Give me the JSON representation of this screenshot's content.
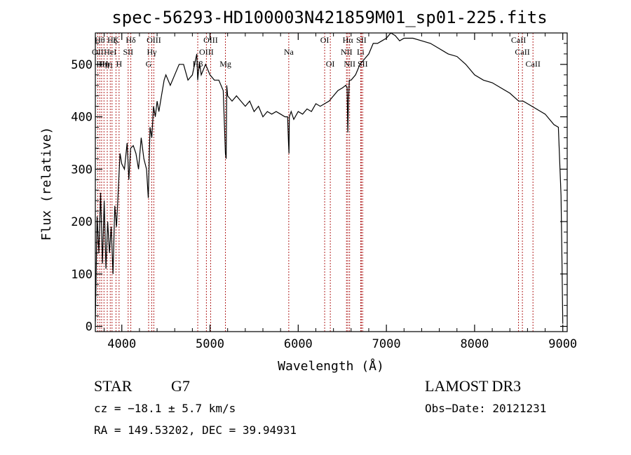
{
  "chart_data": {
    "type": "line",
    "title": "spec-56293-HD100003N421859M01_sp01-225.fits",
    "xlabel": "Wavelength (Å)",
    "ylabel": "Flux (relative)",
    "xlim": [
      3700,
      9050
    ],
    "ylim": [
      -10,
      560
    ],
    "xticks": [
      4000,
      5000,
      6000,
      7000,
      8000,
      9000
    ],
    "yticks": [
      0,
      100,
      200,
      300,
      400,
      500
    ],
    "grid": false,
    "series": [
      {
        "color": "#000000",
        "x": [
          3700,
          3720,
          3740,
          3760,
          3780,
          3800,
          3820,
          3840,
          3860,
          3880,
          3900,
          3920,
          3940,
          3960,
          3980,
          4000,
          4030,
          4060,
          4080,
          4100,
          4130,
          4160,
          4190,
          4220,
          4250,
          4280,
          4300,
          4320,
          4340,
          4360,
          4380,
          4400,
          4420,
          4450,
          4480,
          4500,
          4550,
          4600,
          4650,
          4700,
          4750,
          4800,
          4850,
          4861,
          4880,
          4900,
          4950,
          5000,
          5050,
          5100,
          5150,
          5175,
          5183,
          5190,
          5200,
          5250,
          5300,
          5350,
          5400,
          5450,
          5500,
          5550,
          5600,
          5650,
          5700,
          5750,
          5800,
          5850,
          5880,
          5890,
          5896,
          5900,
          5920,
          5950,
          6000,
          6050,
          6100,
          6150,
          6200,
          6250,
          6300,
          6350,
          6400,
          6450,
          6500,
          6540,
          6555,
          6563,
          6570,
          6580,
          6600,
          6650,
          6700,
          6750,
          6800,
          6850,
          6900,
          6950,
          7000,
          7050,
          7100,
          7150,
          7200,
          7300,
          7400,
          7500,
          7600,
          7700,
          7800,
          7900,
          8000,
          8100,
          8200,
          8300,
          8400,
          8500,
          8550,
          8600,
          8650,
          8700,
          8750,
          8800,
          8850,
          8900,
          8950,
          8980,
          8990,
          9000
        ],
        "values": [
          10,
          210,
          140,
          255,
          120,
          240,
          110,
          200,
          140,
          190,
          100,
          230,
          190,
          260,
          330,
          310,
          300,
          350,
          280,
          340,
          345,
          330,
          300,
          360,
          320,
          300,
          245,
          380,
          360,
          420,
          400,
          430,
          410,
          440,
          470,
          480,
          460,
          480,
          500,
          500,
          470,
          480,
          520,
          470,
          505,
          480,
          500,
          480,
          470,
          470,
          450,
          330,
          320,
          460,
          440,
          430,
          440,
          430,
          420,
          430,
          410,
          420,
          400,
          410,
          405,
          410,
          405,
          400,
          400,
          350,
          330,
          400,
          410,
          395,
          410,
          405,
          415,
          410,
          425,
          420,
          425,
          430,
          440,
          450,
          455,
          460,
          455,
          370,
          430,
          470,
          470,
          480,
          500,
          510,
          520,
          540,
          540,
          545,
          550,
          560,
          555,
          545,
          550,
          550,
          545,
          540,
          530,
          520,
          515,
          500,
          480,
          470,
          465,
          455,
          445,
          430,
          430,
          425,
          420,
          415,
          410,
          405,
          395,
          385,
          380,
          250,
          130,
          5
        ],
        "name": ""
      }
    ],
    "lines": [
      {
        "x": 3727,
        "label": "OII",
        "row": 1
      },
      {
        "x": 3750,
        "label": "Hθ",
        "row": 0
      },
      {
        "x": 3771,
        "label": "Hη",
        "row": 2
      },
      {
        "x": 3798,
        "label": "Hη",
        "row": 2
      },
      {
        "x": 3835,
        "label": "Hη",
        "row": 2
      },
      {
        "x": 3869,
        "label": "HeI",
        "row": 1
      },
      {
        "x": 3889,
        "label": "Hζ",
        "row": 0
      },
      {
        "x": 3934,
        "label": "K",
        "row": 0
      },
      {
        "x": 3969,
        "label": "H",
        "row": 2
      },
      {
        "x": 4072,
        "label": "SII",
        "row": 1
      },
      {
        "x": 4102,
        "label": "Hδ",
        "row": 0
      },
      {
        "x": 4304,
        "label": "G",
        "row": 2
      },
      {
        "x": 4340,
        "label": "Hγ",
        "row": 1
      },
      {
        "x": 4363,
        "label": "OIII",
        "row": 0
      },
      {
        "x": 4861,
        "label": "Hβ",
        "row": 2
      },
      {
        "x": 4959,
        "label": "OIII",
        "row": 1
      },
      {
        "x": 5007,
        "label": "OIII",
        "row": 0
      },
      {
        "x": 5175,
        "label": "Mg",
        "row": 2
      },
      {
        "x": 5893,
        "label": "Na",
        "row": 1
      },
      {
        "x": 6300,
        "label": "OI",
        "row": 0
      },
      {
        "x": 6364,
        "label": "OI",
        "row": 2
      },
      {
        "x": 6548,
        "label": "NII",
        "row": 1
      },
      {
        "x": 6563,
        "label": "Hα",
        "row": 0
      },
      {
        "x": 6583,
        "label": "NII",
        "row": 2
      },
      {
        "x": 6708,
        "label": "Li",
        "row": 1
      },
      {
        "x": 6716,
        "label": "SII",
        "row": 0
      },
      {
        "x": 6731,
        "label": "SII",
        "row": 2
      },
      {
        "x": 8498,
        "label": "CaII",
        "row": 0
      },
      {
        "x": 8542,
        "label": "CaII",
        "row": 1
      },
      {
        "x": 8662,
        "label": "CaII",
        "row": 2
      }
    ]
  },
  "info": {
    "object_class": "STAR",
    "subclass": "G7",
    "survey": "LAMOST DR3",
    "redshift": "cz = −18.1 ± 5.7 km/s",
    "obs_date": "Obs−Date: 20121231",
    "coords": "RA = 149.53202, DEC =  39.94931"
  }
}
